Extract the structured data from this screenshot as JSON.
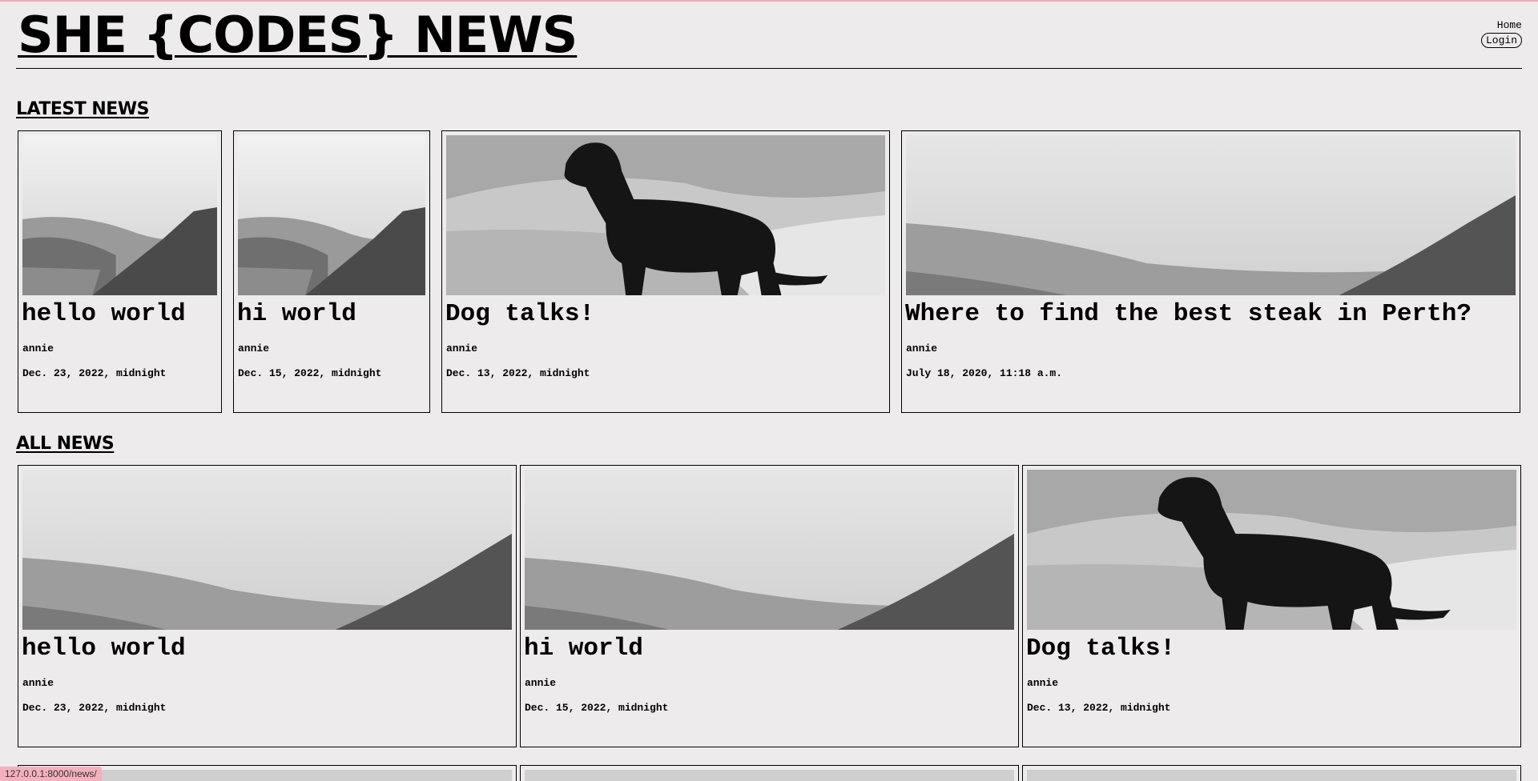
{
  "site": {
    "title": "SHE {CODES} NEWS",
    "nav": {
      "home": "Home",
      "login": "Login"
    }
  },
  "sections": {
    "latest": "LATEST NEWS",
    "all": "ALL NEWS"
  },
  "latest_stories": [
    {
      "title": "hello world",
      "author": "annie",
      "date": "Dec. 23, 2022, midnight",
      "image": "mountain-landscape"
    },
    {
      "title": "hi world",
      "author": "annie",
      "date": "Dec. 15, 2022, midnight",
      "image": "mountain-landscape"
    },
    {
      "title": "Dog talks!",
      "author": "annie",
      "date": "Dec. 13, 2022, midnight",
      "image": "dog-photo"
    },
    {
      "title": "Where to find the best steak in Perth?",
      "author": "annie",
      "date": "July 18, 2020, 11:18 a.m.",
      "image": "mountain-landscape"
    }
  ],
  "all_stories": [
    {
      "title": "hello world",
      "author": "annie",
      "date": "Dec. 23, 2022, midnight",
      "image": "mountain-landscape"
    },
    {
      "title": "hi world",
      "author": "annie",
      "date": "Dec. 15, 2022, midnight",
      "image": "mountain-landscape"
    },
    {
      "title": "Dog talks!",
      "author": "annie",
      "date": "Dec. 13, 2022, midnight",
      "image": "dog-photo"
    }
  ],
  "status_bar": {
    "url": "127.0.0.1:8000/news/"
  },
  "colors": {
    "background": "#edebec",
    "accent": "#f4b0bd"
  }
}
